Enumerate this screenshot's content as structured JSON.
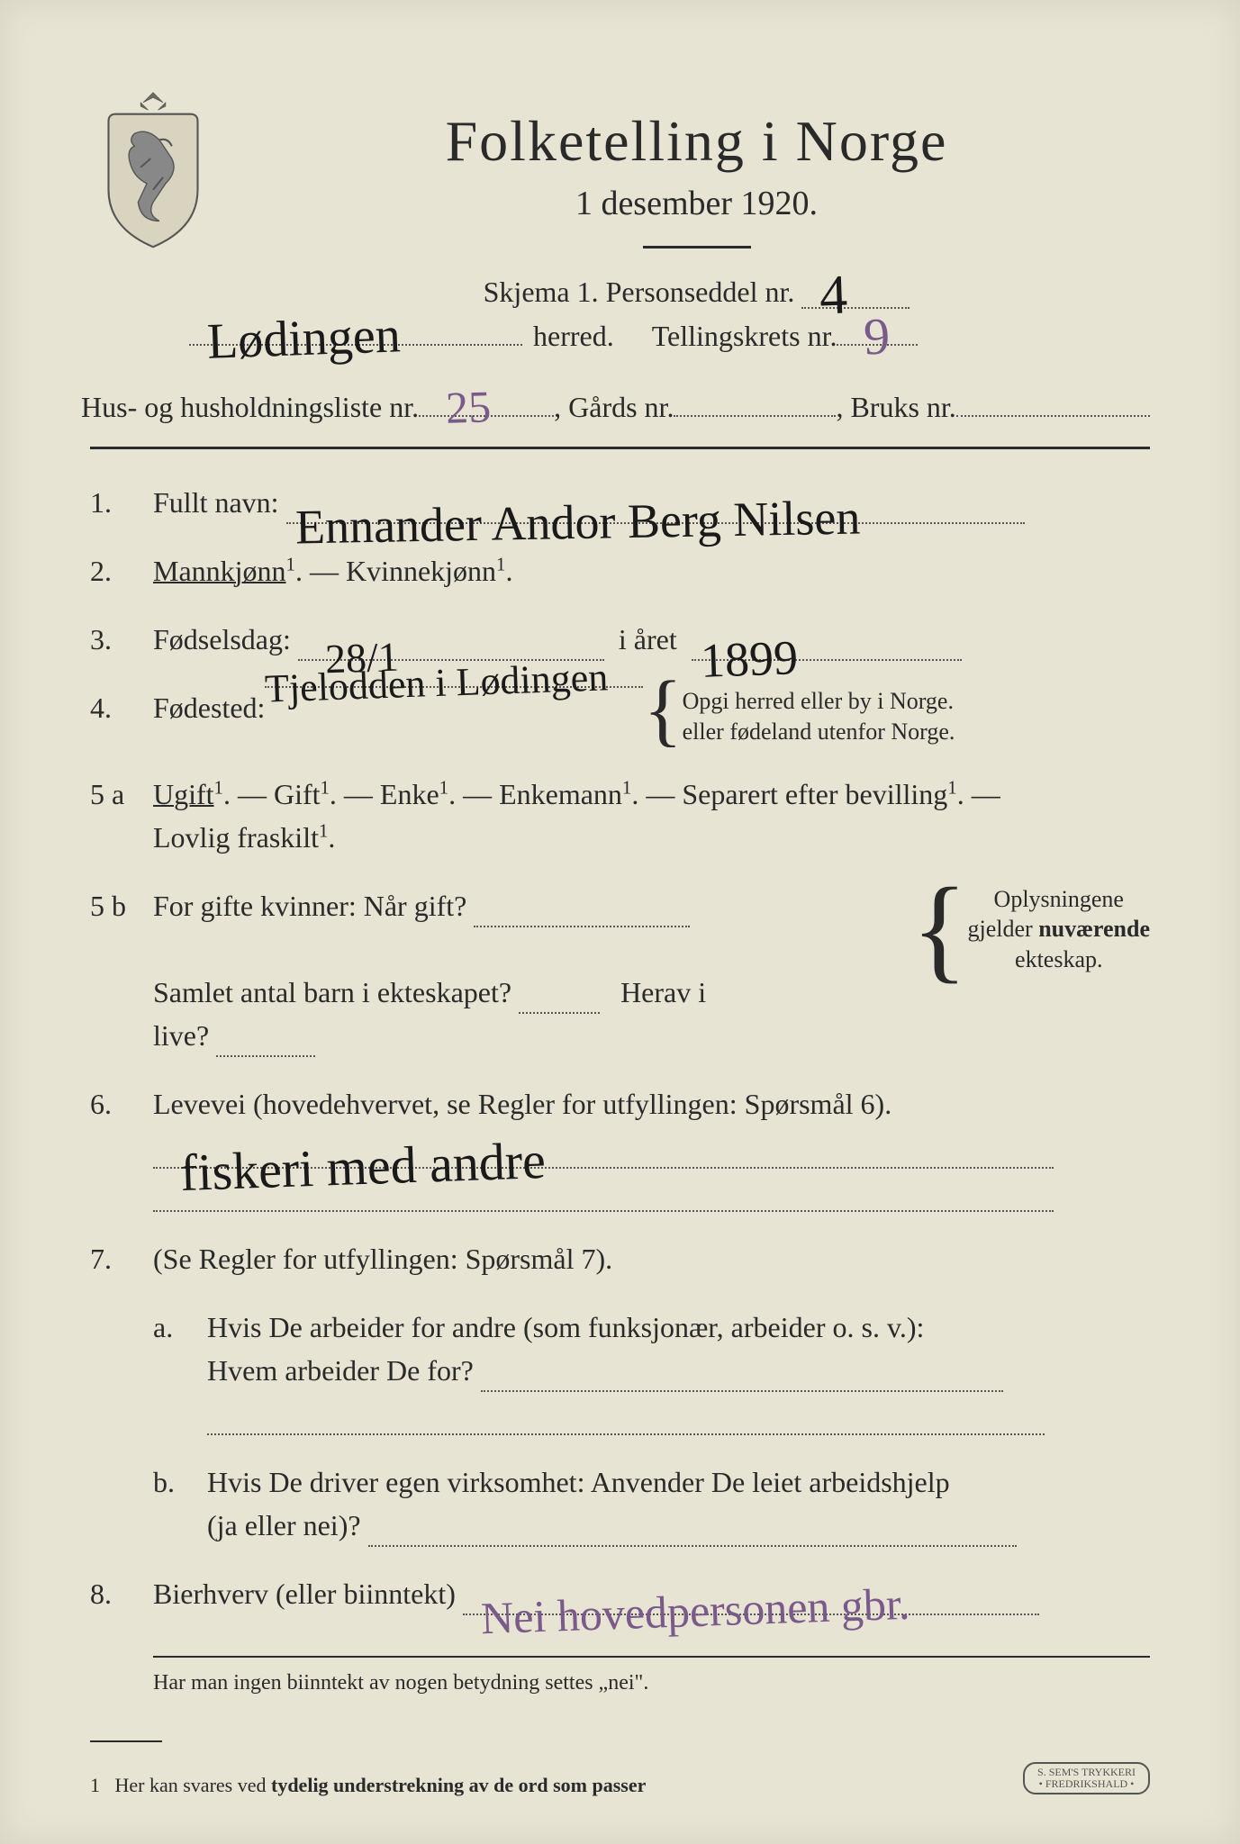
{
  "colors": {
    "paper": "#e8e4d3",
    "ink": "#2a2a2a",
    "handwriting": "#1a1a1a",
    "purple_pencil": "#7a5a8a",
    "dotted_line": "#555555"
  },
  "typography": {
    "title_fontsize": 64,
    "subtitle_fontsize": 38,
    "body_fontsize": 32,
    "footnote_fontsize": 24,
    "handwriting_fontsize": 46
  },
  "header": {
    "title": "Folketelling i Norge",
    "date_line": "1 desember 1920."
  },
  "meta": {
    "skjema_label": "Skjema 1.  Personseddel nr.",
    "personseddel_nr": "4",
    "herred_label": "herred.",
    "herred_value": "Lødingen",
    "tellingskrets_label": "Tellingskrets nr.",
    "tellingskrets_nr": "9",
    "husliste_label_pre": "Hus- og husholdningsliste nr.",
    "husliste_nr": "25",
    "gards_label": ",  Gårds nr.",
    "gards_nr": "",
    "bruks_label": ",  Bruks nr.",
    "bruks_nr": ""
  },
  "q1": {
    "num": "1.",
    "label": "Fullt navn:",
    "value": "Ennander Andor Berg Nilsen"
  },
  "q2": {
    "num": "2.",
    "mann": "Mannkjønn",
    "kvinne": "Kvinnekjønn",
    "sup": "1",
    "sep": ". — ",
    "end": "."
  },
  "q3": {
    "num": "3.",
    "label": "Fødselsdag:",
    "day_value": "28/1",
    "year_label": "i året",
    "year_value": "1899"
  },
  "q4": {
    "num": "4.",
    "label": "Fødested:",
    "value": "Tjelodden i Lødingen",
    "note_line1": "Opgi herred eller by i Norge.",
    "note_line2": "eller fødeland utenfor Norge."
  },
  "q5a": {
    "num": "5 a",
    "opts": [
      "Ugift",
      "Gift",
      "Enke",
      "Enkemann",
      "Separert efter bevilling"
    ],
    "sup": "1",
    "last": "Lovlig fraskilt",
    "sep": ". — ",
    "end": "."
  },
  "q5b": {
    "num": "5 b",
    "line1_label": "For gifte kvinner:  Når gift?",
    "line2_label": "Samlet antal barn i ekteskapet?",
    "line2b_label": "Herav i live?",
    "note_l1": "Oplysningene",
    "note_l2": "gjelder nuværende",
    "note_l3": "ekteskap."
  },
  "q6": {
    "num": "6.",
    "label": "Levevei (hovedehvervet, se Regler for utfyllingen: Spørsmål 6).",
    "value": "fiskeri med andre"
  },
  "q7": {
    "num": "7.",
    "label": "(Se Regler for utfyllingen:  Spørsmål 7).",
    "a_letter": "a.",
    "a_line1": "Hvis De arbeider for andre (som funksjonær, arbeider o. s. v.):",
    "a_line2": "Hvem arbeider De for?",
    "b_letter": "b.",
    "b_line1": "Hvis De driver egen virksomhet:  Anvender De leiet arbeidshjelp",
    "b_line2": "(ja eller nei)?"
  },
  "q8": {
    "num": "8.",
    "label": "Bierhverv (eller biinntekt)",
    "value": "Nei hovedpersonen gbr."
  },
  "footer": {
    "note1": "Har man ingen biinntekt av nogen betydning settes „nei\".",
    "note2_num": "1",
    "note2_text": "Her kan svares ved tydelig understrekning av de ord som passer",
    "printer_l1": "S. SEM'S TRYKKERI",
    "printer_l2": "• FREDRIKSHALD •"
  }
}
